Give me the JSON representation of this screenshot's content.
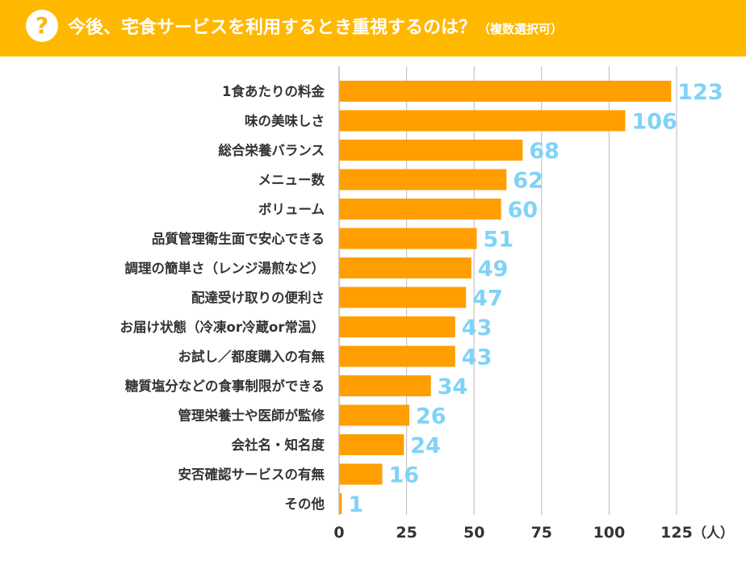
{
  "header": {
    "icon": "question-mark-icon",
    "icon_glyph": "?",
    "title": "今後、宅食サービスを利用するとき重視するのは？",
    "note": "（複数選択可）"
  },
  "colors": {
    "header_bg": "#FFB800",
    "bar": "#FF9E00",
    "value_label": "#7FD3F7",
    "grid": "#BBBBBB",
    "text": "#333333"
  },
  "chart_data": {
    "type": "bar",
    "orientation": "horizontal",
    "title": "今後、宅食サービスを利用するとき重視するのは？（複数選択可）",
    "xlabel": "",
    "ylabel": "",
    "unit_label": "（人）",
    "xlim": [
      0,
      125
    ],
    "xticks": [
      0,
      25,
      50,
      75,
      100,
      125
    ],
    "grid": true,
    "categories": [
      "1食あたりの料金",
      "味の美味しさ",
      "総合栄養バランス",
      "メニュー数",
      "ボリューム",
      "品質管理衛生面で安心できる",
      "調理の簡単さ（レンジ湯煎など）",
      "配達受け取りの便利さ",
      "お届け状態（冷凍or冷蔵or常温）",
      "お試し／都度購入の有無",
      "糖質塩分などの食事制限ができる",
      "管理栄養士や医師が監修",
      "会社名・知名度",
      "安否確認サービスの有無",
      "その他"
    ],
    "values": [
      123,
      106,
      68,
      62,
      60,
      51,
      49,
      47,
      43,
      43,
      34,
      26,
      24,
      16,
      1
    ]
  }
}
